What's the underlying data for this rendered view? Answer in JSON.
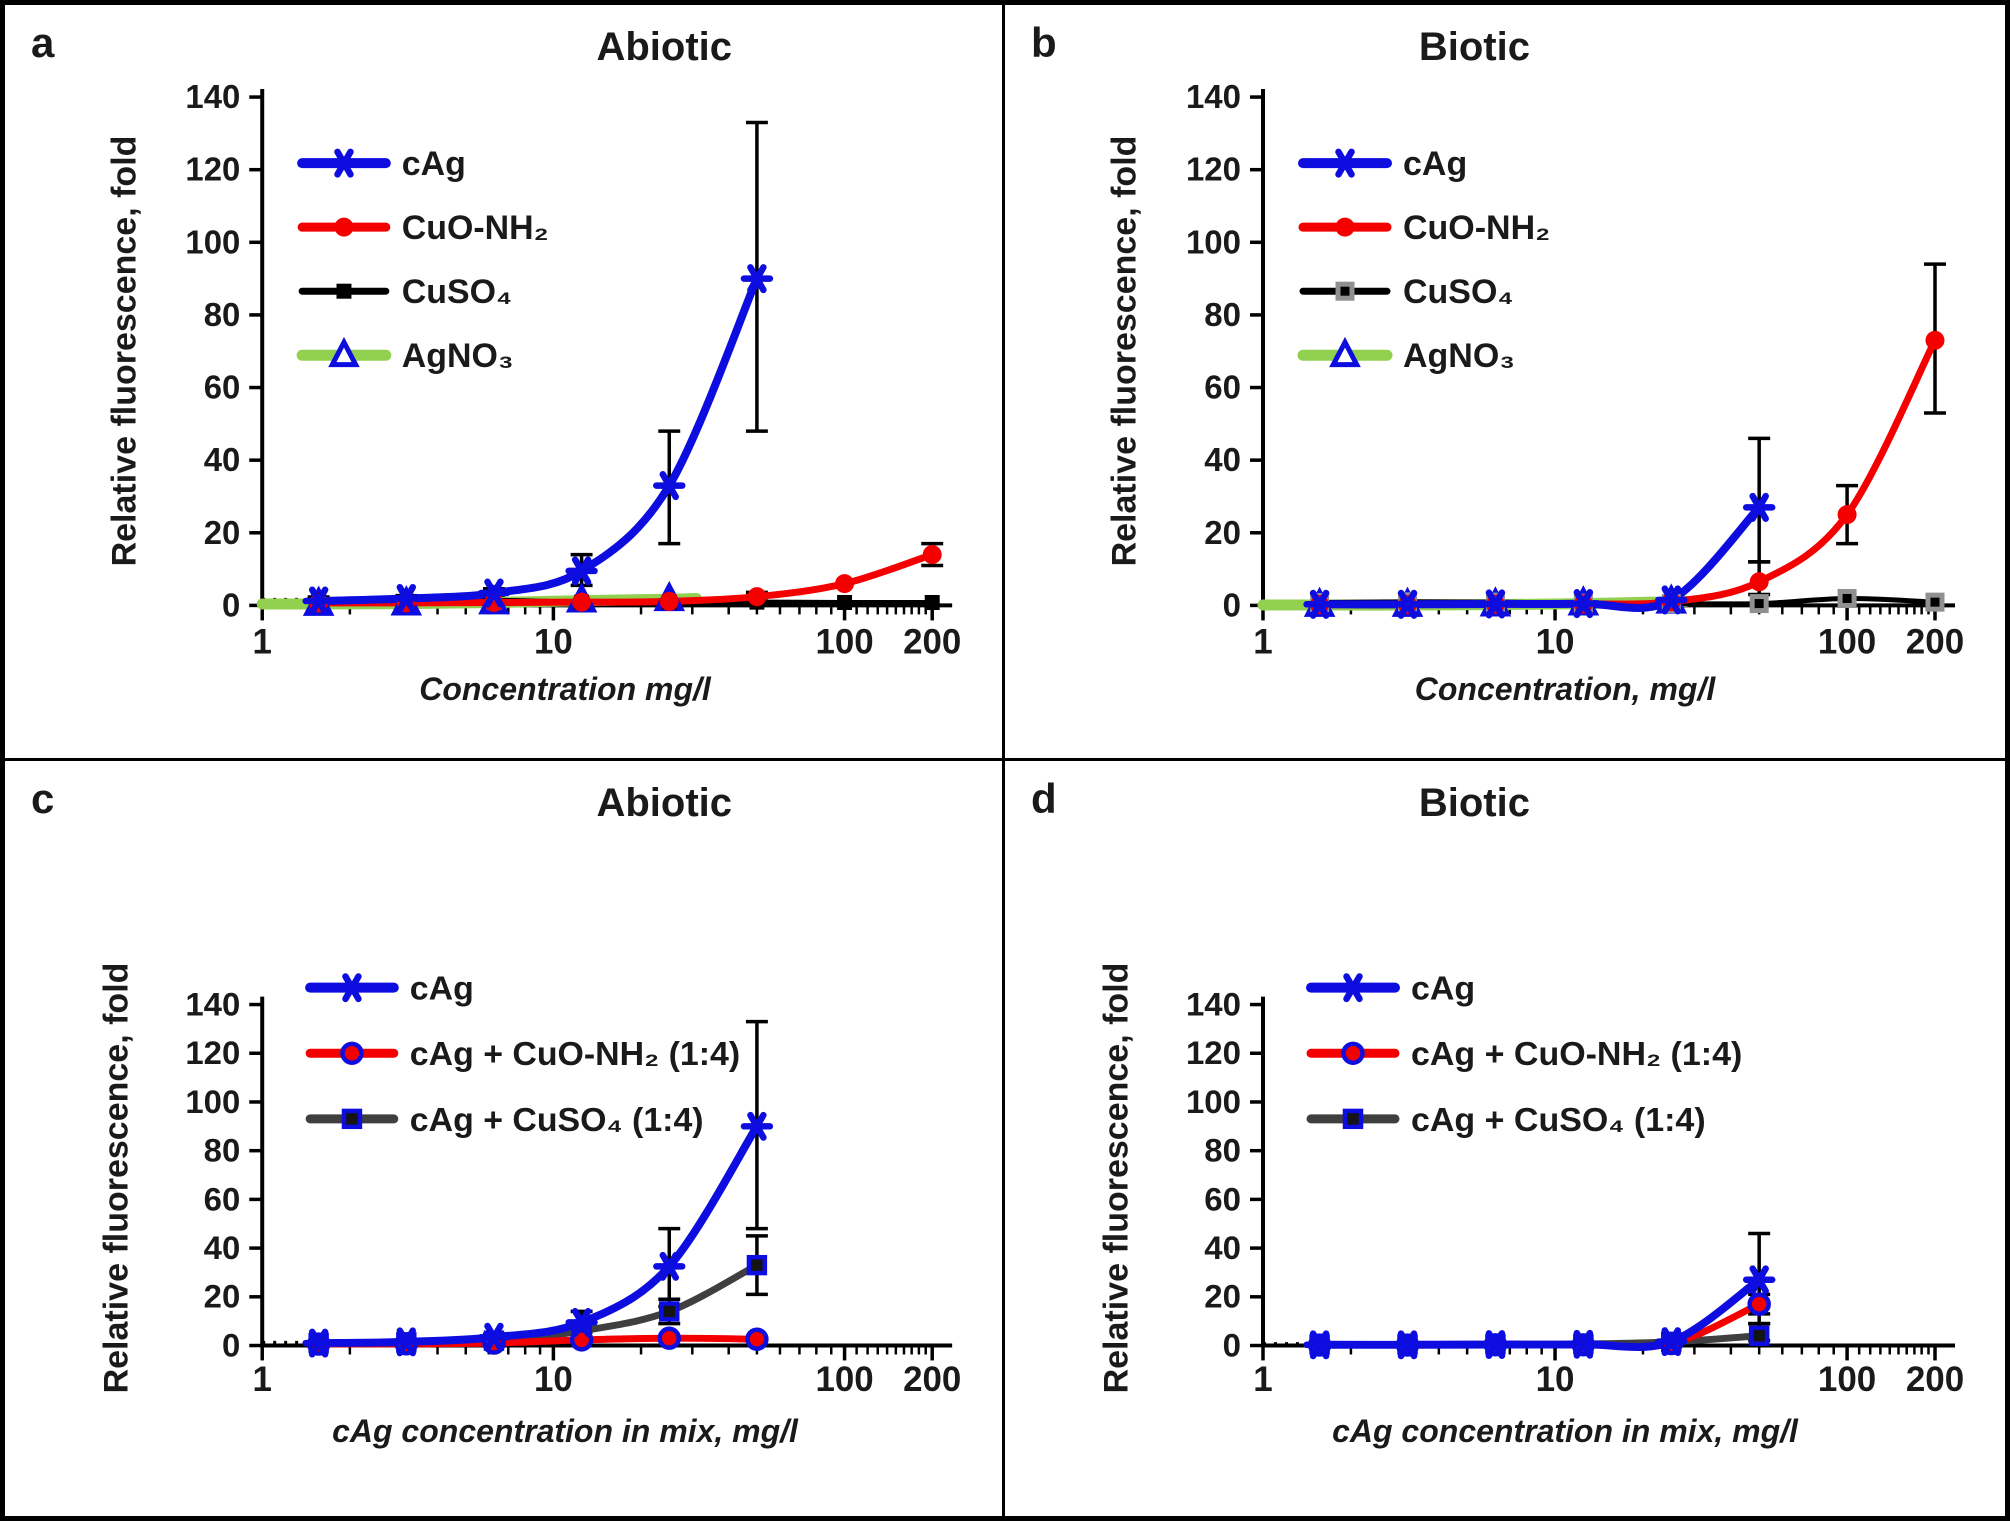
{
  "figure": {
    "ylabel": "Relative fluorescence, fold",
    "yticks": [
      0,
      20,
      40,
      60,
      80,
      100,
      120,
      140
    ],
    "xticks": [
      1,
      10,
      100,
      200
    ],
    "colors": {
      "blue": "#0d0de0",
      "red": "#f40000",
      "green": "#92d050",
      "black": "#000000",
      "dark_gray": "#3f3f3f",
      "gray": "#909090"
    }
  },
  "chart_data": [
    {
      "type": "line",
      "letter": "a",
      "title": "Abiotic",
      "xlabel": "Concentration mg/l",
      "ylabel": "Relative fluorescence, fold",
      "xscale": "log",
      "xlim": [
        1,
        200
      ],
      "ylim": [
        0,
        140
      ],
      "xticks": [
        1,
        10,
        100,
        200
      ],
      "yticks": [
        0,
        20,
        40,
        60,
        80,
        100,
        120,
        140
      ],
      "baseline_dotted": {
        "x1": 1,
        "x2": 2.4,
        "y": 1.6
      },
      "series": [
        {
          "name": "AgNO₃",
          "color": "#92d050",
          "line_width": 11,
          "marker": {
            "shape": "triangle",
            "fill": "#ffffff",
            "stroke": "#0d0de0",
            "stroke_width": 5,
            "size": 13
          },
          "line": [
            [
              1,
              0.4
            ],
            [
              1.5625,
              0.4
            ],
            [
              3.125,
              0.5
            ],
            [
              6.25,
              0.8
            ],
            [
              12.5,
              1.3
            ],
            [
              25,
              1.7
            ],
            [
              31,
              1.9
            ]
          ],
          "points": [
            {
              "x": 1.5625,
              "y": 0.4
            },
            {
              "x": 3.125,
              "y": 0.5
            },
            {
              "x": 6.25,
              "y": 0.8
            },
            {
              "x": 12.5,
              "y": 1.3
            },
            {
              "x": 25,
              "y": 1.7
            }
          ]
        },
        {
          "name": "CuSO₄",
          "color": "#000000",
          "line_width": 5,
          "marker": {
            "shape": "square",
            "fill": "#000000",
            "stroke": "none",
            "stroke_width": 0,
            "size": 15
          },
          "points": [
            {
              "x": 1.5625,
              "y": 1.4,
              "err_lo": 0.6,
              "err_hi": 2.3
            },
            {
              "x": 3.125,
              "y": 1.1
            },
            {
              "x": 6.25,
              "y": 1.4,
              "err_lo": 0.5,
              "err_hi": 2.3
            },
            {
              "x": 12.5,
              "y": 0.9
            },
            {
              "x": 25,
              "y": 0.9
            },
            {
              "x": 50,
              "y": 0.9
            },
            {
              "x": 100,
              "y": 0.8
            },
            {
              "x": 200,
              "y": 0.8
            }
          ]
        },
        {
          "name": "CuO-NH₂",
          "color": "#f40000",
          "line_width": 7,
          "marker": {
            "shape": "circle",
            "fill": "#f40000",
            "stroke": "none",
            "stroke_width": 0,
            "size": 9.5
          },
          "points": [
            {
              "x": 1.5625,
              "y": 0.7
            },
            {
              "x": 3.125,
              "y": 0.7
            },
            {
              "x": 6.25,
              "y": 0.8
            },
            {
              "x": 12.5,
              "y": 0.9
            },
            {
              "x": 25,
              "y": 1.1
            },
            {
              "x": 50,
              "y": 2.4,
              "err_lo": 1.2,
              "err_hi": 3.6
            },
            {
              "x": 100,
              "y": 6
            },
            {
              "x": 200,
              "y": 14,
              "err_lo": 11,
              "err_hi": 17
            }
          ]
        },
        {
          "name": "cAg",
          "color": "#0d0de0",
          "line_width": 8,
          "marker": {
            "shape": "asterisk",
            "fill": "#0d0de0",
            "stroke": "#0d0de0",
            "stroke_width": 6.5,
            "size": 13
          },
          "points": [
            {
              "x": 1.5625,
              "y": 1.2,
              "err_lo": 0.6,
              "err_hi": 1.9
            },
            {
              "x": 3.125,
              "y": 1.9,
              "err_lo": 1.1,
              "err_hi": 2.7
            },
            {
              "x": 6.25,
              "y": 3.4,
              "err_lo": 2.2,
              "err_hi": 4.6
            },
            {
              "x": 12.5,
              "y": 9.5,
              "err_lo": 5.5,
              "err_hi": 14
            },
            {
              "x": 25,
              "y": 33,
              "err_lo": 17,
              "err_hi": 48
            },
            {
              "x": 50,
              "y": 90,
              "err_lo": 48,
              "err_hi": 133
            }
          ]
        }
      ]
    },
    {
      "type": "line",
      "letter": "b",
      "title": "Biotic",
      "xlabel": "Concentration, mg/l",
      "ylabel": "Relative fluorescence, fold",
      "xscale": "log",
      "xlim": [
        1,
        200
      ],
      "ylim": [
        0,
        140
      ],
      "xticks": [
        1,
        10,
        100,
        200
      ],
      "yticks": [
        0,
        20,
        40,
        60,
        80,
        100,
        120,
        140
      ],
      "baseline_dotted": {
        "x1": 1,
        "x2": 2.4,
        "y": 0.9
      },
      "series": [
        {
          "name": "AgNO₃",
          "color": "#92d050",
          "line_width": 11,
          "marker": {
            "shape": "triangle",
            "fill": "#ffffff",
            "stroke": "#0d0de0",
            "stroke_width": 5,
            "size": 13
          },
          "line": [
            [
              1,
              0.1
            ],
            [
              1.5625,
              0.1
            ],
            [
              3.125,
              0.1
            ],
            [
              6.25,
              0.2
            ],
            [
              12.5,
              0.5
            ],
            [
              25,
              1.0
            ],
            [
              28,
              1.1
            ]
          ],
          "points": [
            {
              "x": 1.5625,
              "y": 0.1
            },
            {
              "x": 3.125,
              "y": 0.1
            },
            {
              "x": 6.25,
              "y": 0.2
            },
            {
              "x": 12.5,
              "y": 0.5
            },
            {
              "x": 25,
              "y": 1.0
            }
          ]
        },
        {
          "name": "CuSO₄",
          "color": "#000000",
          "line_width": 5,
          "marker": {
            "shape": "square2",
            "fill": "#909090",
            "stroke": "#000000",
            "stroke_width": 0,
            "size": 19,
            "inner": 9
          },
          "points": [
            {
              "x": 1.5625,
              "y": 0.8
            },
            {
              "x": 3.125,
              "y": 1.0
            },
            {
              "x": 6.25,
              "y": 0.9
            },
            {
              "x": 12.5,
              "y": 0.6
            },
            {
              "x": 25,
              "y": 0.5
            },
            {
              "x": 50,
              "y": 0.5
            },
            {
              "x": 100,
              "y": 1.9
            },
            {
              "x": 200,
              "y": 0.9
            }
          ]
        },
        {
          "name": "CuO-NH₂",
          "color": "#f40000",
          "line_width": 7,
          "marker": {
            "shape": "circle",
            "fill": "#f40000",
            "stroke": "none",
            "stroke_width": 0,
            "size": 9.5
          },
          "points": [
            {
              "x": 1.5625,
              "y": 0.2
            },
            {
              "x": 3.125,
              "y": 0.2
            },
            {
              "x": 6.25,
              "y": 0.3
            },
            {
              "x": 12.5,
              "y": 0.4
            },
            {
              "x": 25,
              "y": 1.0
            },
            {
              "x": 50,
              "y": 6.5,
              "err_lo": 3,
              "err_hi": 12
            },
            {
              "x": 100,
              "y": 25,
              "err_lo": 17,
              "err_hi": 33
            },
            {
              "x": 200,
              "y": 73,
              "err_lo": 53,
              "err_hi": 94
            }
          ]
        },
        {
          "name": "cAg",
          "color": "#0d0de0",
          "line_width": 8,
          "marker": {
            "shape": "asterisk",
            "fill": "#0d0de0",
            "stroke": "#0d0de0",
            "stroke_width": 6.5,
            "size": 13
          },
          "points": [
            {
              "x": 1.5625,
              "y": 0.3
            },
            {
              "x": 3.125,
              "y": 0.3
            },
            {
              "x": 6.25,
              "y": 0.4
            },
            {
              "x": 12.5,
              "y": 0.5
            },
            {
              "x": 25,
              "y": 1.5
            },
            {
              "x": 50,
              "y": 27,
              "err_lo": 12,
              "err_hi": 46
            }
          ]
        }
      ]
    },
    {
      "type": "line",
      "letter": "c",
      "title": "Abiotic",
      "xlabel": "cAg concentration in mix, mg/l",
      "ylabel": "Relative fluorescence, fold",
      "xscale": "log",
      "xlim": [
        1,
        200
      ],
      "ylim": [
        0,
        140
      ],
      "xticks": [
        1,
        10,
        100,
        200
      ],
      "yticks": [
        0,
        20,
        40,
        60,
        80,
        100,
        120,
        140
      ],
      "baseline_dotted": {
        "x1": 1,
        "x2": 2.2,
        "y": 1.2
      },
      "series": [
        {
          "name": "cAg + CuSO₄  (1:4)",
          "color": "#3f3f3f",
          "line_width": 7,
          "marker": {
            "shape": "square",
            "fill": "#141414",
            "stroke": "#0d0de0",
            "stroke_width": 4.5,
            "size": 16
          },
          "points": [
            {
              "x": 1.5625,
              "y": 1.0
            },
            {
              "x": 3.125,
              "y": 1.3
            },
            {
              "x": 6.25,
              "y": 2.0
            },
            {
              "x": 12.5,
              "y": 6,
              "err_lo": 3,
              "err_hi": 9
            },
            {
              "x": 25,
              "y": 14,
              "err_lo": 9,
              "err_hi": 19
            },
            {
              "x": 50,
              "y": 33,
              "err_lo": 21,
              "err_hi": 45
            }
          ]
        },
        {
          "name": "cAg + CuO-NH₂  (1:4)",
          "color": "#f40000",
          "line_width": 7,
          "marker": {
            "shape": "circle",
            "fill": "#f40000",
            "stroke": "#0d0de0",
            "stroke_width": 4.5,
            "size": 9.5
          },
          "points": [
            {
              "x": 1.5625,
              "y": 0.6
            },
            {
              "x": 3.125,
              "y": 0.7
            },
            {
              "x": 6.25,
              "y": 1.0
            },
            {
              "x": 12.5,
              "y": 2.3,
              "err_lo": 1.0,
              "err_hi": 3.6
            },
            {
              "x": 25,
              "y": 3.0
            },
            {
              "x": 50,
              "y": 2.6
            }
          ]
        },
        {
          "name": "cAg",
          "color": "#0d0de0",
          "line_width": 8,
          "marker": {
            "shape": "asterisk",
            "fill": "#0d0de0",
            "stroke": "#0d0de0",
            "stroke_width": 6.5,
            "size": 13
          },
          "points": [
            {
              "x": 1.5625,
              "y": 1.0,
              "err_lo": 0.5,
              "err_hi": 1.6
            },
            {
              "x": 3.125,
              "y": 1.5,
              "err_lo": 0.8,
              "err_hi": 2.2
            },
            {
              "x": 6.25,
              "y": 3.4,
              "err_lo": 2.2,
              "err_hi": 4.6
            },
            {
              "x": 12.5,
              "y": 9.5,
              "err_lo": 5.5,
              "err_hi": 14
            },
            {
              "x": 25,
              "y": 32.5,
              "err_lo": 16,
              "err_hi": 48
            },
            {
              "x": 50,
              "y": 90,
              "err_lo": 48,
              "err_hi": 133
            }
          ]
        }
      ]
    },
    {
      "type": "line",
      "letter": "d",
      "title": "Biotic",
      "xlabel": "cAg concentration in mix, mg/l",
      "ylabel": "Relative fluorescence, fold",
      "xscale": "log",
      "xlim": [
        1,
        200
      ],
      "ylim": [
        0,
        140
      ],
      "xticks": [
        1,
        10,
        100,
        200
      ],
      "yticks": [
        0,
        20,
        40,
        60,
        80,
        100,
        120,
        140
      ],
      "baseline_dotted": {
        "x1": 1,
        "x2": 2.2,
        "y": 0.7
      },
      "series": [
        {
          "name": "cAg + CuSO₄  (1:4)",
          "color": "#3f3f3f",
          "line_width": 7,
          "marker": {
            "shape": "square",
            "fill": "#141414",
            "stroke": "#0d0de0",
            "stroke_width": 4.5,
            "size": 16
          },
          "points": [
            {
              "x": 1.5625,
              "y": 0.4
            },
            {
              "x": 3.125,
              "y": 0.4
            },
            {
              "x": 6.25,
              "y": 0.5
            },
            {
              "x": 12.5,
              "y": 0.6
            },
            {
              "x": 25,
              "y": 1.5
            },
            {
              "x": 50,
              "y": 4,
              "err_lo": 2,
              "err_hi": 9
            }
          ]
        },
        {
          "name": "cAg + CuO-NH₂  (1:4)",
          "color": "#f40000",
          "line_width": 7,
          "marker": {
            "shape": "circle",
            "fill": "#f40000",
            "stroke": "#0d0de0",
            "stroke_width": 4.5,
            "size": 9.5
          },
          "points": [
            {
              "x": 1.5625,
              "y": 0.2
            },
            {
              "x": 3.125,
              "y": 0.2
            },
            {
              "x": 6.25,
              "y": 0.3
            },
            {
              "x": 12.5,
              "y": 0.3
            },
            {
              "x": 25,
              "y": 0.8
            },
            {
              "x": 50,
              "y": 17,
              "err_lo": 13,
              "err_hi": 21
            }
          ]
        },
        {
          "name": "cAg",
          "color": "#0d0de0",
          "line_width": 8,
          "marker": {
            "shape": "asterisk",
            "fill": "#0d0de0",
            "stroke": "#0d0de0",
            "stroke_width": 6.5,
            "size": 13
          },
          "points": [
            {
              "x": 1.5625,
              "y": 0.3
            },
            {
              "x": 3.125,
              "y": 0.3
            },
            {
              "x": 6.25,
              "y": 0.4
            },
            {
              "x": 12.5,
              "y": 0.5
            },
            {
              "x": 25,
              "y": 1.6
            },
            {
              "x": 50,
              "y": 27,
              "err_lo": 9,
              "err_hi": 46
            }
          ]
        }
      ]
    }
  ]
}
